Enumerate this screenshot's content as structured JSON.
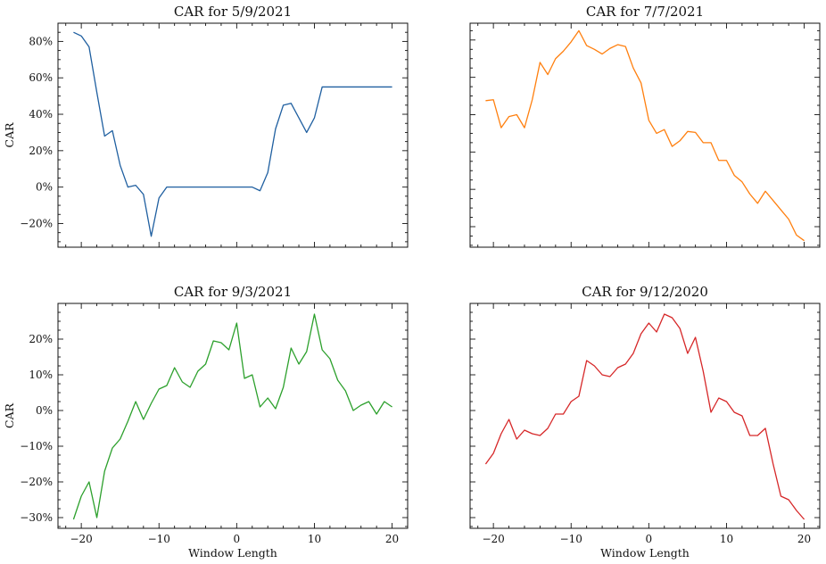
{
  "chart_data": [
    {
      "type": "line",
      "title": "CAR for 5/9/2021",
      "xlabel": "",
      "ylabel": "CAR",
      "xlim": [
        -23,
        22
      ],
      "ylim": [
        -33,
        90
      ],
      "x_ticks": [
        -20,
        -10,
        0,
        10,
        20
      ],
      "y_ticks": [
        -20,
        0,
        20,
        40,
        60,
        80
      ],
      "y_tick_labels": [
        "−20%",
        "0%",
        "20%",
        "40%",
        "60%",
        "80%"
      ],
      "x_tick_labels": [],
      "color": "#1f5fa0",
      "x": [
        -21,
        -20,
        -19,
        -18,
        -17,
        -16,
        -15,
        -14,
        -13,
        -12,
        -11,
        -10,
        -9,
        -8,
        -7,
        -6,
        -5,
        -4,
        -3,
        -2,
        -1,
        0,
        1,
        2,
        3,
        4,
        5,
        6,
        7,
        8,
        9,
        10,
        11,
        12,
        13,
        14,
        15,
        16,
        17,
        18,
        19,
        20
      ],
      "y": [
        85,
        83,
        77,
        52,
        28,
        31,
        12,
        0,
        1,
        -4,
        -27,
        -6,
        0,
        0,
        0,
        0,
        0,
        0,
        0,
        0,
        0,
        0,
        0,
        0,
        -2,
        8,
        32,
        45,
        46,
        38,
        30,
        38,
        55,
        55,
        55,
        55,
        55,
        55,
        55,
        55,
        55,
        55
      ]
    },
    {
      "type": "line",
      "title": "CAR for 7/7/2021",
      "xlabel": "",
      "ylabel": "",
      "xlim": [
        -23,
        22
      ],
      "ylim": [
        -31,
        89
      ],
      "x_ticks": [
        -20,
        -10,
        0,
        10,
        20
      ],
      "y_ticks": [
        -20,
        0,
        20,
        40,
        60,
        80
      ],
      "y_tick_labels": [],
      "x_tick_labels": [],
      "color": "#ff7f0e",
      "x": [
        -21,
        -20,
        -19,
        -18,
        -17,
        -16,
        -15,
        -14,
        -13,
        -12,
        -11,
        -10,
        -9,
        -8,
        -7,
        -6,
        -5,
        -4,
        -3,
        -2,
        -1,
        0,
        1,
        2,
        3,
        4,
        5,
        6,
        7,
        8,
        9,
        10,
        11,
        12,
        13,
        14,
        15,
        16,
        17,
        18,
        19,
        20
      ],
      "y": [
        47.5,
        48,
        33,
        39,
        40,
        33,
        48,
        68,
        61.5,
        70,
        74,
        79,
        85,
        77,
        75,
        72.5,
        75.5,
        77.5,
        76.5,
        65,
        57,
        37,
        30,
        32,
        23,
        26,
        31,
        30.5,
        25,
        25,
        15.5,
        15.5,
        7.5,
        4,
        -2.5,
        -7.5,
        -1,
        -6,
        -11,
        -16,
        -24.5,
        -27.5
      ]
    },
    {
      "type": "line",
      "title": "CAR for 9/3/2021",
      "xlabel": "Window Length",
      "ylabel": "CAR",
      "xlim": [
        -23,
        22
      ],
      "ylim": [
        -33,
        30
      ],
      "x_ticks": [
        -20,
        -10,
        0,
        10,
        20
      ],
      "y_ticks": [
        -30,
        -20,
        -10,
        0,
        10,
        20
      ],
      "y_tick_labels": [
        "−30%",
        "−20%",
        "−10%",
        "0%",
        "10%",
        "20%"
      ],
      "x_tick_labels": [
        "−20",
        "−10",
        "0",
        "10",
        "20"
      ],
      "color": "#2ca02c",
      "x": [
        -21,
        -20,
        -19,
        -18,
        -17,
        -16,
        -15,
        -14,
        -13,
        -12,
        -11,
        -10,
        -9,
        -8,
        -7,
        -6,
        -5,
        -4,
        -3,
        -2,
        -1,
        0,
        1,
        2,
        3,
        4,
        5,
        6,
        7,
        8,
        9,
        10,
        11,
        12,
        13,
        14,
        15,
        16,
        17,
        18,
        19,
        20
      ],
      "y": [
        -30.5,
        -24,
        -20,
        -30,
        -17,
        -10.5,
        -8,
        -3,
        2.5,
        -2.5,
        2,
        6,
        7,
        12,
        8,
        6.5,
        11,
        13,
        19.5,
        19,
        17,
        24.5,
        9,
        10,
        1,
        3.5,
        0.5,
        6.5,
        17.5,
        13,
        16.5,
        27,
        17,
        14.5,
        8.5,
        5.5,
        0,
        1.5,
        2.5,
        -1,
        2.5,
        1
      ]
    },
    {
      "type": "line",
      "title": "CAR for 9/12/2020",
      "xlabel": "Window Length",
      "ylabel": "",
      "xlim": [
        -23,
        22
      ],
      "ylim": [
        -33,
        30
      ],
      "x_ticks": [
        -20,
        -10,
        0,
        10,
        20
      ],
      "y_ticks": [
        -30,
        -20,
        -10,
        0,
        10,
        20
      ],
      "y_tick_labels": [],
      "x_tick_labels": [
        "−20",
        "−10",
        "0",
        "10",
        "20"
      ],
      "color": "#d62728",
      "x": [
        -21,
        -20,
        -19,
        -18,
        -17,
        -16,
        -15,
        -14,
        -13,
        -12,
        -11,
        -10,
        -9,
        -8,
        -7,
        -6,
        -5,
        -4,
        -3,
        -2,
        -1,
        0,
        1,
        2,
        3,
        4,
        5,
        6,
        7,
        8,
        9,
        10,
        11,
        12,
        13,
        14,
        15,
        16,
        17,
        18,
        19,
        20
      ],
      "y": [
        -15,
        -12,
        -6.5,
        -2.5,
        -8,
        -5.5,
        -6.5,
        -7,
        -5,
        -1,
        -1,
        2.5,
        4,
        14,
        12.5,
        10,
        9.5,
        12,
        13,
        16,
        21.5,
        24.5,
        22,
        27,
        26,
        23,
        16,
        20.5,
        11,
        -0.5,
        3.5,
        2.5,
        -0.5,
        -1.5,
        -7,
        -7,
        -5,
        -15,
        -24,
        -25,
        -28,
        -30.5
      ]
    }
  ]
}
